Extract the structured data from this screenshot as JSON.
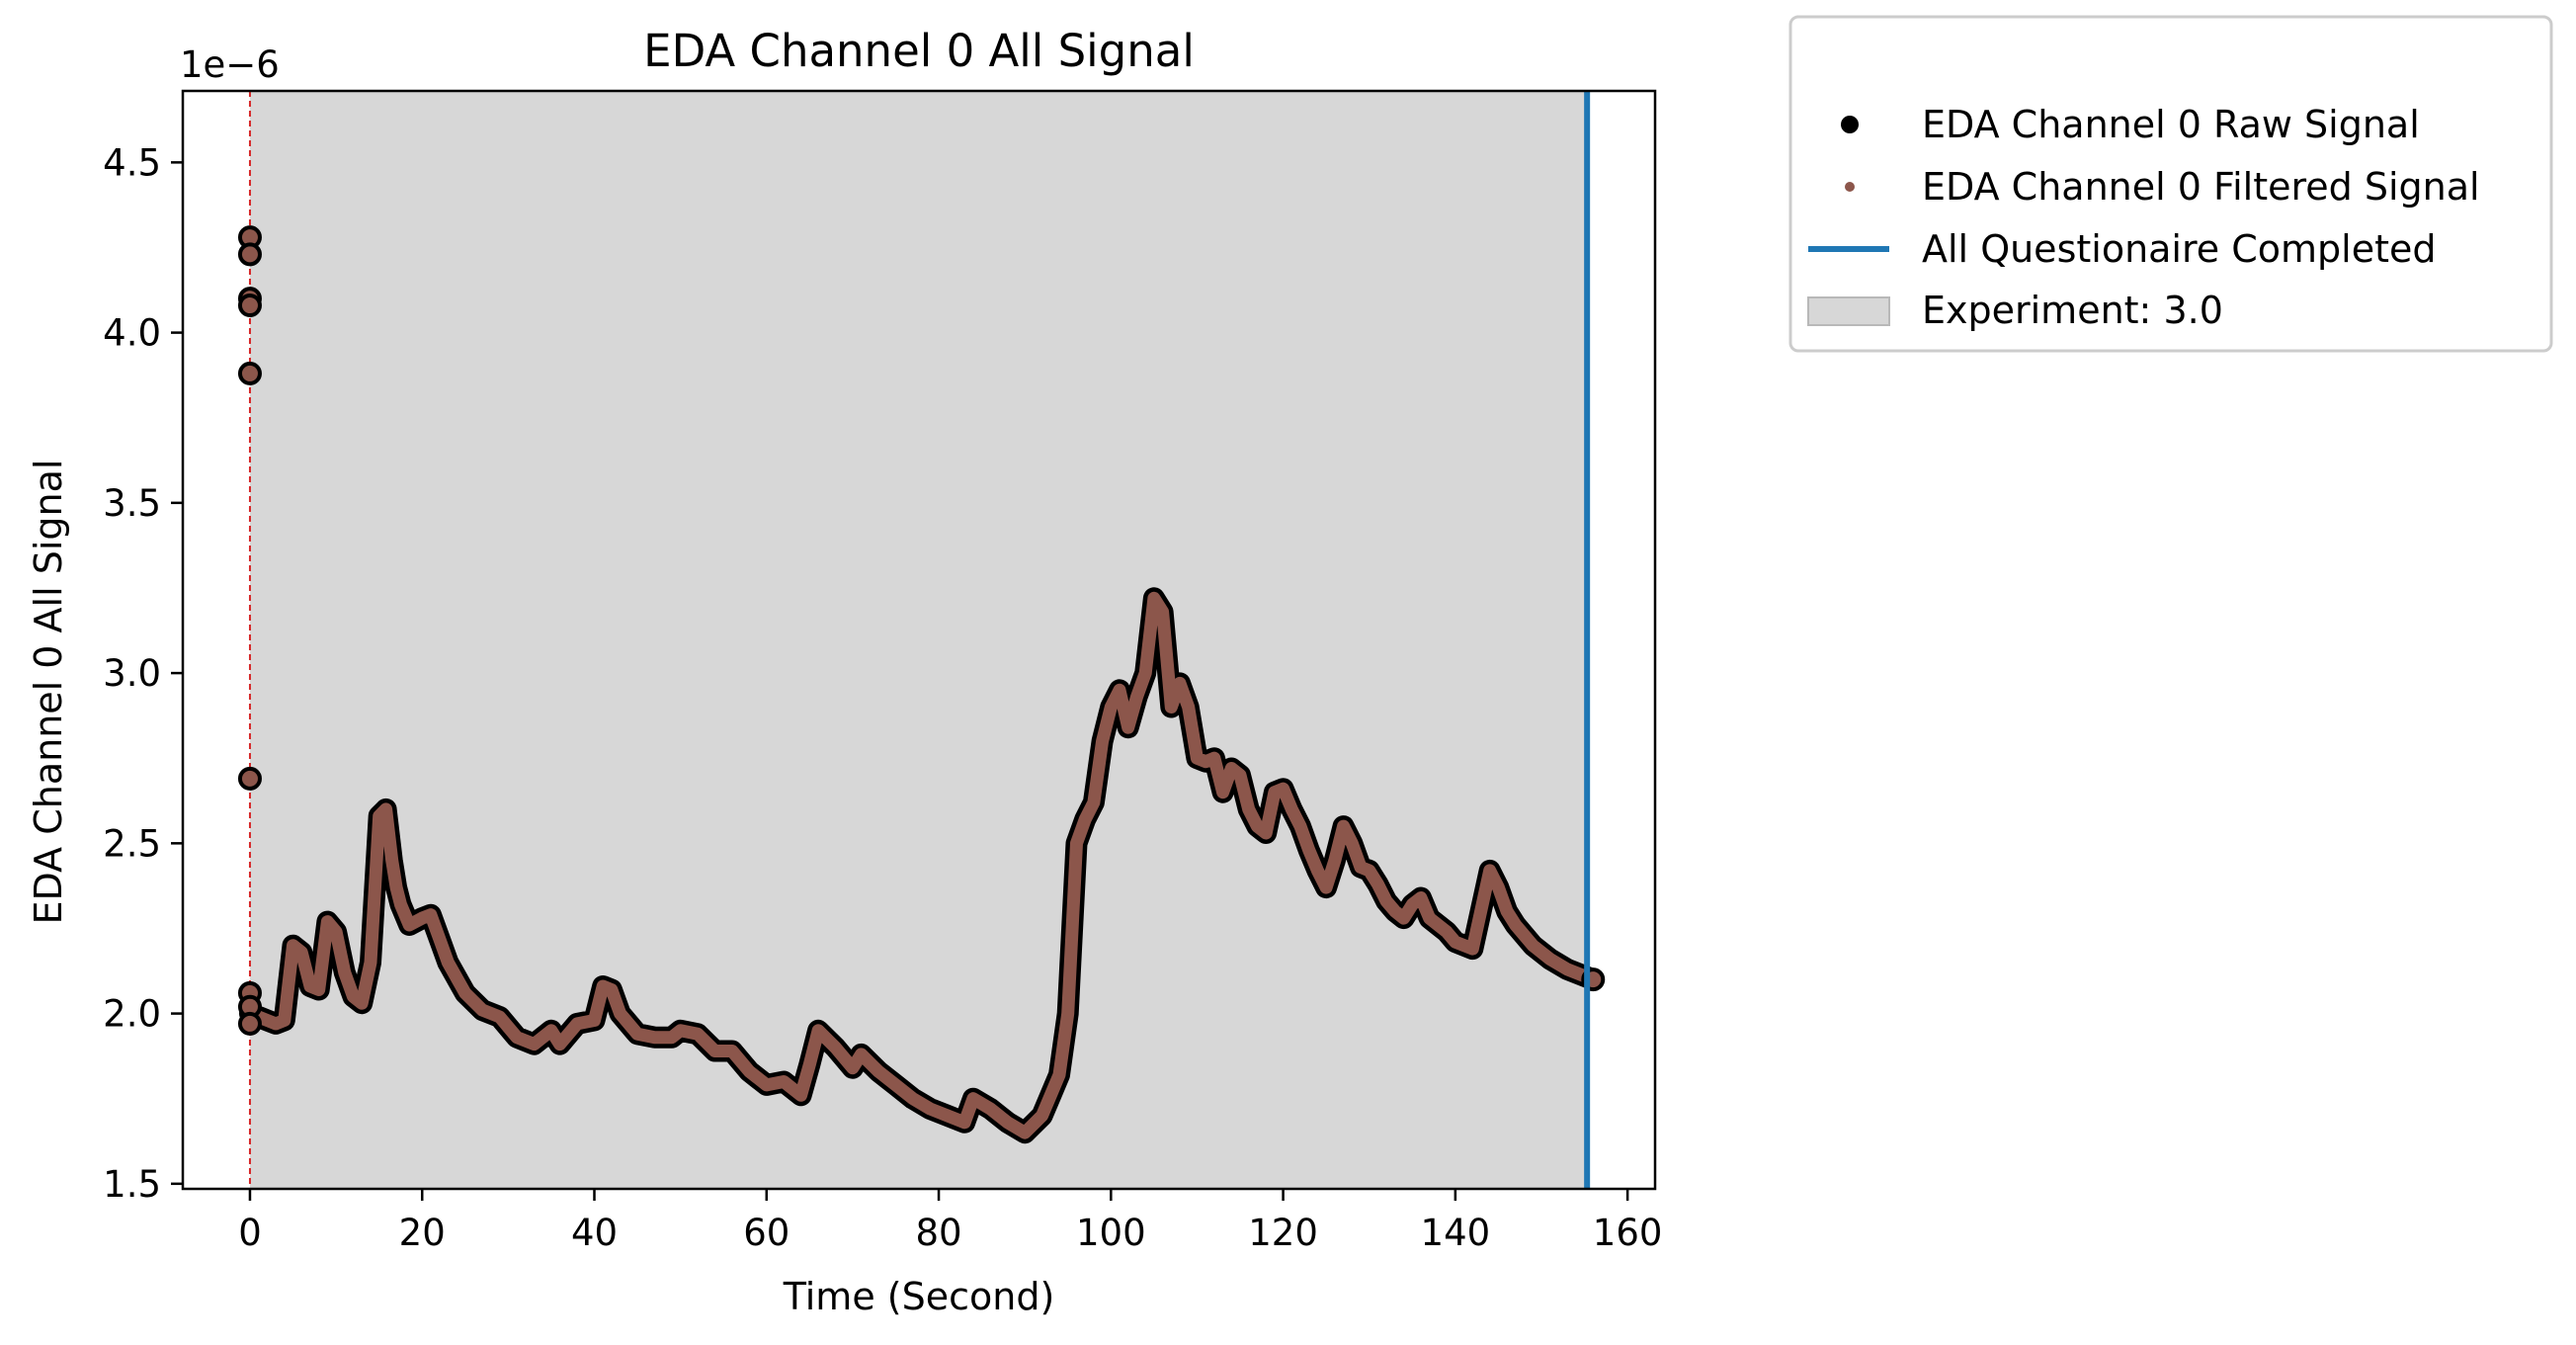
{
  "chart_data": {
    "type": "line",
    "title": "EDA Channel 0 All Signal",
    "xlabel": "Time (Second)",
    "ylabel": "EDA Channel 0 All Signal",
    "y_offset_label": "1e−6",
    "y_scale_exponent": -6,
    "xlim": [
      -7.8,
      163.2
    ],
    "ylim": [
      1.485,
      4.71
    ],
    "xticks": [
      0,
      20,
      40,
      60,
      80,
      100,
      120,
      140,
      160
    ],
    "yticks": [
      1.5,
      2.0,
      2.5,
      3.0,
      3.5,
      4.0,
      4.5
    ],
    "xtick_labels": [
      "0",
      "20",
      "40",
      "60",
      "80",
      "100",
      "120",
      "140",
      "160"
    ],
    "ytick_labels": [
      "1.5",
      "2.0",
      "2.5",
      "3.0",
      "3.5",
      "4.0",
      "4.5"
    ],
    "grid": false,
    "legend_placement": "outside upper-right",
    "colors": {
      "raw": "#000000",
      "filtered": "#8c564b",
      "completed": "#1f77b4",
      "experiment_span": "#d7d7d7",
      "start_line": "#d62728"
    },
    "series": [
      {
        "name": "EDA Channel 0 Raw Signal",
        "marker": "black-dot",
        "x": [
          0,
          0.3,
          1,
          2,
          3,
          4,
          5,
          6,
          7,
          8,
          9,
          10,
          11,
          12,
          13,
          14,
          15,
          15.8,
          16.5,
          17,
          17.5,
          18.5,
          20,
          21,
          22,
          23,
          25,
          27,
          29,
          31,
          33,
          35,
          36,
          38,
          40,
          41,
          42,
          43,
          45,
          47,
          49,
          50,
          52,
          54,
          56,
          58,
          60,
          62,
          64,
          65,
          66,
          68,
          70,
          71,
          73,
          75,
          77,
          79,
          81,
          83,
          84,
          86,
          88,
          90,
          92,
          93,
          94,
          95,
          96,
          97,
          98,
          99,
          100,
          101,
          102,
          103,
          104,
          105,
          106,
          107,
          108,
          109,
          110,
          111,
          112,
          113,
          114,
          115,
          116,
          117,
          118,
          119,
          120,
          121,
          122,
          123,
          124,
          125,
          126,
          127,
          128,
          129,
          130,
          131,
          132,
          133,
          134,
          135,
          136,
          137,
          138,
          139,
          140,
          142,
          144,
          145,
          146,
          147,
          149,
          151,
          153,
          155,
          156
        ],
        "values": [
          2.0,
          1.99,
          1.99,
          1.98,
          1.97,
          1.98,
          2.2,
          2.18,
          2.08,
          2.07,
          2.27,
          2.24,
          2.12,
          2.05,
          2.03,
          2.15,
          2.58,
          2.6,
          2.45,
          2.37,
          2.32,
          2.26,
          2.28,
          2.29,
          2.22,
          2.15,
          2.06,
          2.01,
          1.99,
          1.93,
          1.91,
          1.95,
          1.91,
          1.97,
          1.98,
          2.08,
          2.07,
          2.0,
          1.94,
          1.93,
          1.93,
          1.95,
          1.94,
          1.89,
          1.89,
          1.83,
          1.79,
          1.8,
          1.76,
          1.85,
          1.95,
          1.9,
          1.84,
          1.88,
          1.83,
          1.79,
          1.75,
          1.72,
          1.7,
          1.68,
          1.75,
          1.72,
          1.68,
          1.65,
          1.7,
          1.76,
          1.82,
          2.0,
          2.5,
          2.57,
          2.62,
          2.8,
          2.9,
          2.95,
          2.84,
          2.93,
          3.0,
          3.22,
          3.18,
          2.9,
          2.97,
          2.9,
          2.75,
          2.74,
          2.75,
          2.65,
          2.72,
          2.7,
          2.6,
          2.55,
          2.53,
          2.65,
          2.66,
          2.6,
          2.55,
          2.48,
          2.42,
          2.37,
          2.45,
          2.55,
          2.5,
          2.43,
          2.42,
          2.38,
          2.33,
          2.3,
          2.28,
          2.32,
          2.34,
          2.28,
          2.26,
          2.24,
          2.21,
          2.19,
          2.42,
          2.37,
          2.3,
          2.26,
          2.2,
          2.16,
          2.13,
          2.11,
          2.1
        ]
      },
      {
        "name": "EDA Channel 0 Filtered Signal",
        "marker": "brown-dot",
        "x": [
          0,
          0.3,
          1,
          2,
          3,
          4,
          5,
          6,
          7,
          8,
          9,
          10,
          11,
          12,
          13,
          14,
          15,
          15.8,
          16.5,
          17,
          17.5,
          18.5,
          20,
          21,
          22,
          23,
          25,
          27,
          29,
          31,
          33,
          35,
          36,
          38,
          40,
          41,
          42,
          43,
          45,
          47,
          49,
          50,
          52,
          54,
          56,
          58,
          60,
          62,
          64,
          65,
          66,
          68,
          70,
          71,
          73,
          75,
          77,
          79,
          81,
          83,
          84,
          86,
          88,
          90,
          92,
          93,
          94,
          95,
          96,
          97,
          98,
          99,
          100,
          101,
          102,
          103,
          104,
          105,
          106,
          107,
          108,
          109,
          110,
          111,
          112,
          113,
          114,
          115,
          116,
          117,
          118,
          119,
          120,
          121,
          122,
          123,
          124,
          125,
          126,
          127,
          128,
          129,
          130,
          131,
          132,
          133,
          134,
          135,
          136,
          137,
          138,
          139,
          140,
          142,
          144,
          145,
          146,
          147,
          149,
          151,
          153,
          155,
          156
        ],
        "values": [
          2.0,
          1.99,
          1.99,
          1.98,
          1.97,
          1.98,
          2.2,
          2.18,
          2.08,
          2.07,
          2.27,
          2.24,
          2.12,
          2.05,
          2.03,
          2.15,
          2.58,
          2.6,
          2.45,
          2.37,
          2.32,
          2.26,
          2.28,
          2.29,
          2.22,
          2.15,
          2.06,
          2.01,
          1.99,
          1.93,
          1.91,
          1.95,
          1.91,
          1.97,
          1.98,
          2.08,
          2.07,
          2.0,
          1.94,
          1.93,
          1.93,
          1.95,
          1.94,
          1.89,
          1.89,
          1.83,
          1.79,
          1.8,
          1.76,
          1.85,
          1.95,
          1.9,
          1.84,
          1.88,
          1.83,
          1.79,
          1.75,
          1.72,
          1.7,
          1.68,
          1.75,
          1.72,
          1.68,
          1.65,
          1.7,
          1.76,
          1.82,
          2.0,
          2.5,
          2.57,
          2.62,
          2.8,
          2.9,
          2.95,
          2.84,
          2.93,
          3.0,
          3.22,
          3.18,
          2.9,
          2.97,
          2.9,
          2.75,
          2.74,
          2.75,
          2.65,
          2.72,
          2.7,
          2.6,
          2.55,
          2.53,
          2.65,
          2.66,
          2.6,
          2.55,
          2.48,
          2.42,
          2.37,
          2.45,
          2.55,
          2.5,
          2.43,
          2.42,
          2.38,
          2.33,
          2.3,
          2.28,
          2.32,
          2.34,
          2.28,
          2.26,
          2.24,
          2.21,
          2.19,
          2.42,
          2.37,
          2.3,
          2.26,
          2.2,
          2.16,
          2.13,
          2.11,
          2.1
        ]
      }
    ],
    "outliers": {
      "x": [
        0,
        0,
        0,
        0,
        0,
        0,
        0,
        0,
        0
      ],
      "values": [
        4.28,
        4.23,
        4.1,
        4.08,
        3.88,
        2.69,
        2.06,
        2.02,
        1.97
      ]
    },
    "vlines": [
      {
        "name": "All Questionaire Completed",
        "x": 155.3
      },
      {
        "name": "",
        "x": 0,
        "style": "dashed"
      }
    ],
    "spans": [
      {
        "name": "Experiment: 3.0",
        "x0": 0,
        "x1": 155.3
      }
    ]
  }
}
